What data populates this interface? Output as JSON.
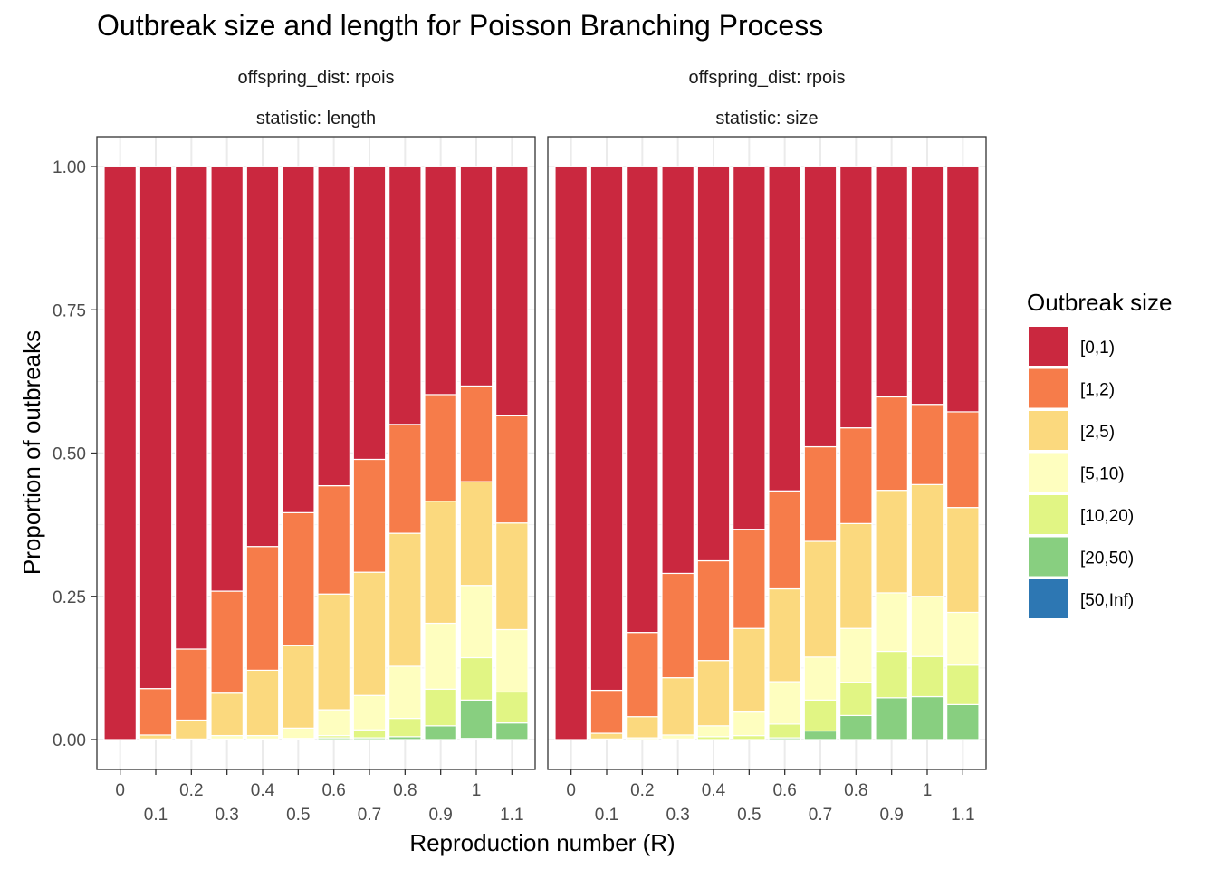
{
  "chart_data": {
    "type": "bar",
    "stacked": true,
    "title": "Outbreak size and length for Poisson Branching Process",
    "xlabel": "Reproduction number (R)",
    "ylabel": "Proportion of outbreaks",
    "ylim": [
      0,
      1
    ],
    "y_ticks": [
      "0.00",
      "0.25",
      "0.50",
      "0.75",
      "1.00"
    ],
    "categories": [
      "0",
      "0.1",
      "0.2",
      "0.3",
      "0.4",
      "0.5",
      "0.6",
      "0.7",
      "0.8",
      "0.9",
      "1",
      "1.1"
    ],
    "grid": true,
    "legend": {
      "title": "Outbreak size",
      "position": "right",
      "entries": [
        {
          "label": "[0,1)",
          "color": "#CA283F"
        },
        {
          "label": "[1,2)",
          "color": "#F67C4A"
        },
        {
          "label": "[2,5)",
          "color": "#FBD97E"
        },
        {
          "label": "[5,10)",
          "color": "#FEFEBF"
        },
        {
          "label": "[10,20)",
          "color": "#E1F584"
        },
        {
          "label": "[20,50)",
          "color": "#88CF80"
        },
        {
          "label": "[50,Inf)",
          "color": "#2D77B3"
        }
      ]
    },
    "panels": [
      {
        "strip1": "offspring_dist: rpois",
        "strip2": "statistic: length",
        "series": [
          {
            "name": "[0,1)",
            "values": [
              1.0,
              0.911,
              0.842,
              0.741,
              0.663,
              0.604,
              0.557,
              0.511,
              0.45,
              0.398,
              0.383,
              0.435
            ]
          },
          {
            "name": "[1,2)",
            "values": [
              0,
              0.081,
              0.124,
              0.178,
              0.216,
              0.232,
              0.189,
              0.197,
              0.19,
              0.186,
              0.167,
              0.187
            ]
          },
          {
            "name": "[2,5)",
            "values": [
              0,
              0.007,
              0.033,
              0.074,
              0.114,
              0.144,
              0.202,
              0.215,
              0.232,
              0.213,
              0.181,
              0.186
            ]
          },
          {
            "name": "[5,10)",
            "values": [
              0,
              0.001,
              0.001,
              0.006,
              0.006,
              0.018,
              0.045,
              0.06,
              0.091,
              0.115,
              0.126,
              0.109
            ]
          },
          {
            "name": "[10,20)",
            "values": [
              0,
              0,
              0,
              0.001,
              0.001,
              0.002,
              0.004,
              0.014,
              0.032,
              0.064,
              0.074,
              0.054
            ]
          },
          {
            "name": "[20,50)",
            "values": [
              0,
              0,
              0,
              0,
              0,
              0,
              0.003,
              0.003,
              0.005,
              0.024,
              0.067,
              0.029
            ]
          },
          {
            "name": "[50,Inf)",
            "values": [
              0,
              0,
              0,
              0,
              0,
              0,
              0,
              0,
              0,
              0,
              0.002,
              0
            ]
          }
        ]
      },
      {
        "strip1": "offspring_dist: rpois",
        "strip2": "statistic: size",
        "series": [
          {
            "name": "[0,1)",
            "values": [
              1.0,
              0.914,
              0.813,
              0.71,
              0.688,
              0.633,
              0.566,
              0.489,
              0.456,
              0.402,
              0.415,
              0.428
            ]
          },
          {
            "name": "[1,2)",
            "values": [
              0,
              0.075,
              0.147,
              0.182,
              0.174,
              0.173,
              0.171,
              0.165,
              0.167,
              0.163,
              0.14,
              0.167
            ]
          },
          {
            "name": "[2,5)",
            "values": [
              0,
              0.01,
              0.037,
              0.1,
              0.114,
              0.146,
              0.162,
              0.202,
              0.183,
              0.179,
              0.195,
              0.183
            ]
          },
          {
            "name": "[5,10)",
            "values": [
              0,
              0.001,
              0.003,
              0.007,
              0.019,
              0.041,
              0.074,
              0.075,
              0.094,
              0.102,
              0.105,
              0.092
            ]
          },
          {
            "name": "[10,20)",
            "values": [
              0,
              0,
              0,
              0.001,
              0.005,
              0.007,
              0.024,
              0.054,
              0.058,
              0.081,
              0.07,
              0.069
            ]
          },
          {
            "name": "[20,50)",
            "values": [
              0,
              0,
              0,
              0,
              0,
              0,
              0.003,
              0.015,
              0.042,
              0.073,
              0.075,
              0.061
            ]
          },
          {
            "name": "[50,Inf)",
            "values": [
              0,
              0,
              0,
              0,
              0,
              0,
              0,
              0,
              0,
              0,
              0,
              0
            ]
          }
        ]
      }
    ]
  }
}
